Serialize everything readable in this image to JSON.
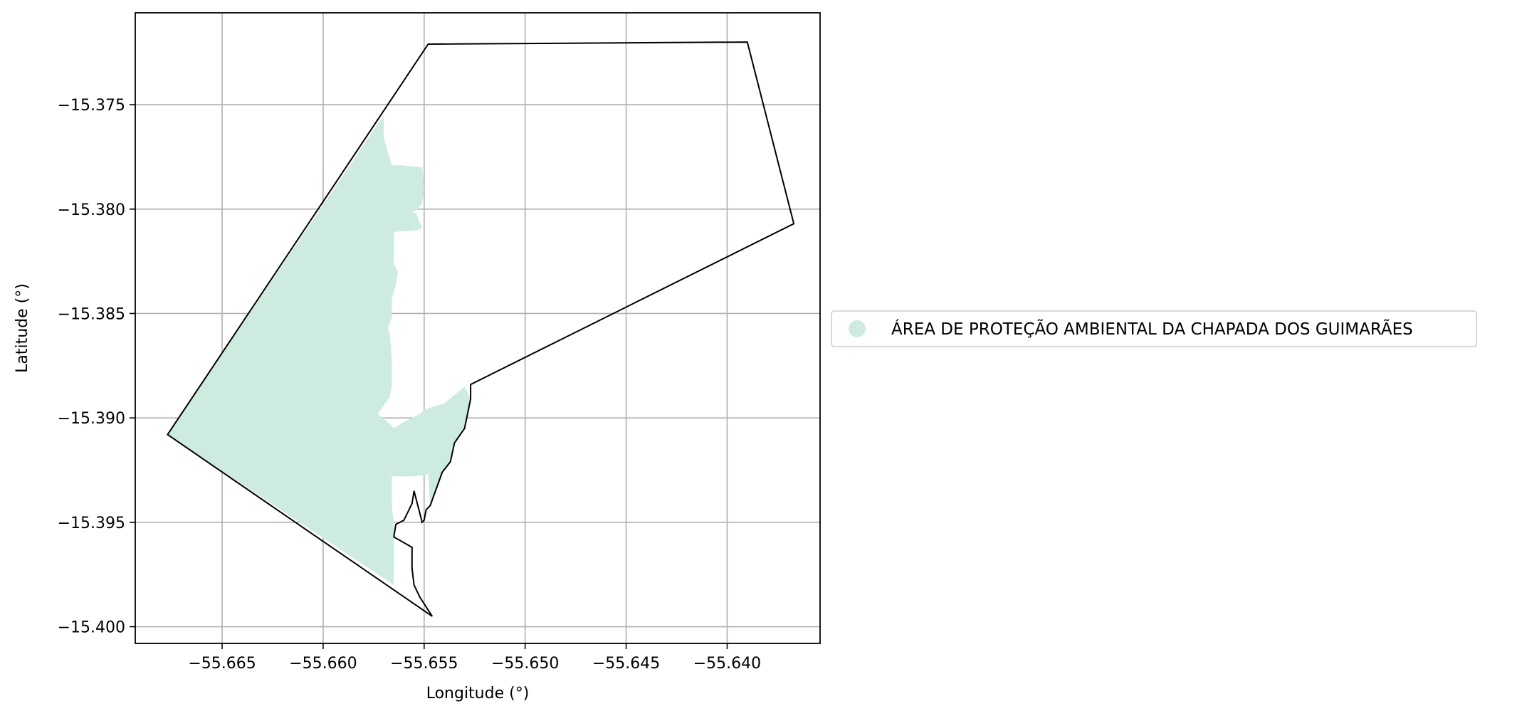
{
  "chart_data": {
    "type": "map",
    "xlabel": "Longitude (°)",
    "ylabel": "Latitude (°)",
    "xlim": [
      -55.6693,
      -55.6354
    ],
    "ylim": [
      -15.4008,
      -15.3706
    ],
    "grid": true,
    "x_ticks": [
      -55.665,
      -55.66,
      -55.655,
      -55.65,
      -55.645,
      -55.64
    ],
    "x_tick_labels": [
      "−55.665",
      "−55.660",
      "−55.655",
      "−55.650",
      "−55.645",
      "−55.640"
    ],
    "y_ticks": [
      -15.375,
      -15.38,
      -15.385,
      -15.39,
      -15.395,
      -15.4
    ],
    "y_tick_labels": [
      "−15.375",
      "−15.380",
      "−15.385",
      "−15.390",
      "−15.395",
      "−15.400"
    ],
    "legend_position": "right",
    "legend": [
      {
        "label": "ÁREA DE PROTEÇÃO AMBIENTAL DA CHAPADA DOS GUIMARÃES",
        "color": "#cdebdf"
      }
    ],
    "colors": {
      "protected_area_fill": "#cdebdf",
      "boundary_stroke": "#000000",
      "grid": "#b0b0b0"
    },
    "boundary_polygon": [
      [
        -55.6548,
        -15.3721
      ],
      [
        -55.639,
        -15.372
      ],
      [
        -55.6367,
        -15.3807
      ],
      [
        -55.6527,
        -15.3884
      ],
      [
        -55.6527,
        -15.3891
      ],
      [
        -55.653,
        -15.3905
      ],
      [
        -55.6535,
        -15.3912
      ],
      [
        -55.6537,
        -15.3921
      ],
      [
        -55.6541,
        -15.3926
      ],
      [
        -55.6547,
        -15.3942
      ],
      [
        -55.6549,
        -15.3944
      ],
      [
        -55.655,
        -15.3949
      ],
      [
        -55.6551,
        -15.395
      ],
      [
        -55.6555,
        -15.3935
      ],
      [
        -55.6556,
        -15.3941
      ],
      [
        -55.656,
        -15.3949
      ],
      [
        -55.6564,
        -15.3951
      ],
      [
        -55.6565,
        -15.3957
      ],
      [
        -55.6556,
        -15.3962
      ],
      [
        -55.6556,
        -15.3972
      ],
      [
        -55.6555,
        -15.398
      ],
      [
        -55.6552,
        -15.3986
      ],
      [
        -55.6546,
        -15.3995
      ],
      [
        -55.6677,
        -15.3908
      ]
    ],
    "protected_area_polygon": [
      [
        -55.657,
        -15.3766
      ],
      [
        -55.6566,
        -15.3779
      ],
      [
        -55.6561,
        -15.3779
      ],
      [
        -55.6551,
        -15.378
      ],
      [
        -55.655,
        -15.379
      ],
      [
        -55.6551,
        -15.3797
      ],
      [
        -55.6553,
        -15.38
      ],
      [
        -55.6557,
        -15.3802
      ],
      [
        -55.6559,
        -15.3801
      ],
      [
        -55.6554,
        -15.3802
      ],
      [
        -55.6551,
        -15.3809
      ],
      [
        -55.6553,
        -15.381
      ],
      [
        -55.6565,
        -15.3811
      ],
      [
        -55.6565,
        -15.3826
      ],
      [
        -55.6563,
        -15.383
      ],
      [
        -55.6564,
        -15.3836
      ],
      [
        -55.6566,
        -15.3843
      ],
      [
        -55.6566,
        -15.3852
      ],
      [
        -55.6568,
        -15.3857
      ],
      [
        -55.6567,
        -15.386
      ],
      [
        -55.6566,
        -15.3872
      ],
      [
        -55.6566,
        -15.388
      ],
      [
        -55.6566,
        -15.3885
      ],
      [
        -55.6567,
        -15.389
      ],
      [
        -55.6573,
        -15.3898
      ],
      [
        -55.6568,
        -15.3902
      ],
      [
        -55.6565,
        -15.3905
      ],
      [
        -55.656,
        -15.3902
      ],
      [
        -55.6552,
        -15.3898
      ],
      [
        -55.655,
        -15.3896
      ],
      [
        -55.654,
        -15.3893
      ],
      [
        -55.653,
        -15.3885
      ],
      [
        -55.6527,
        -15.3891
      ],
      [
        -55.653,
        -15.3905
      ],
      [
        -55.6535,
        -15.3912
      ],
      [
        -55.6537,
        -15.3921
      ],
      [
        -55.6541,
        -15.3926
      ],
      [
        -55.6547,
        -15.3942
      ],
      [
        -55.6548,
        -15.3927
      ],
      [
        -55.6555,
        -15.3928
      ],
      [
        -55.6566,
        -15.3928
      ],
      [
        -55.6566,
        -15.3938
      ],
      [
        -55.6566,
        -15.3942
      ],
      [
        -55.6565,
        -15.3951
      ],
      [
        -55.6565,
        -15.3957
      ],
      [
        -55.6565,
        -15.398
      ],
      [
        -55.6677,
        -15.3908
      ],
      [
        -55.657,
        -15.3755
      ]
    ]
  }
}
